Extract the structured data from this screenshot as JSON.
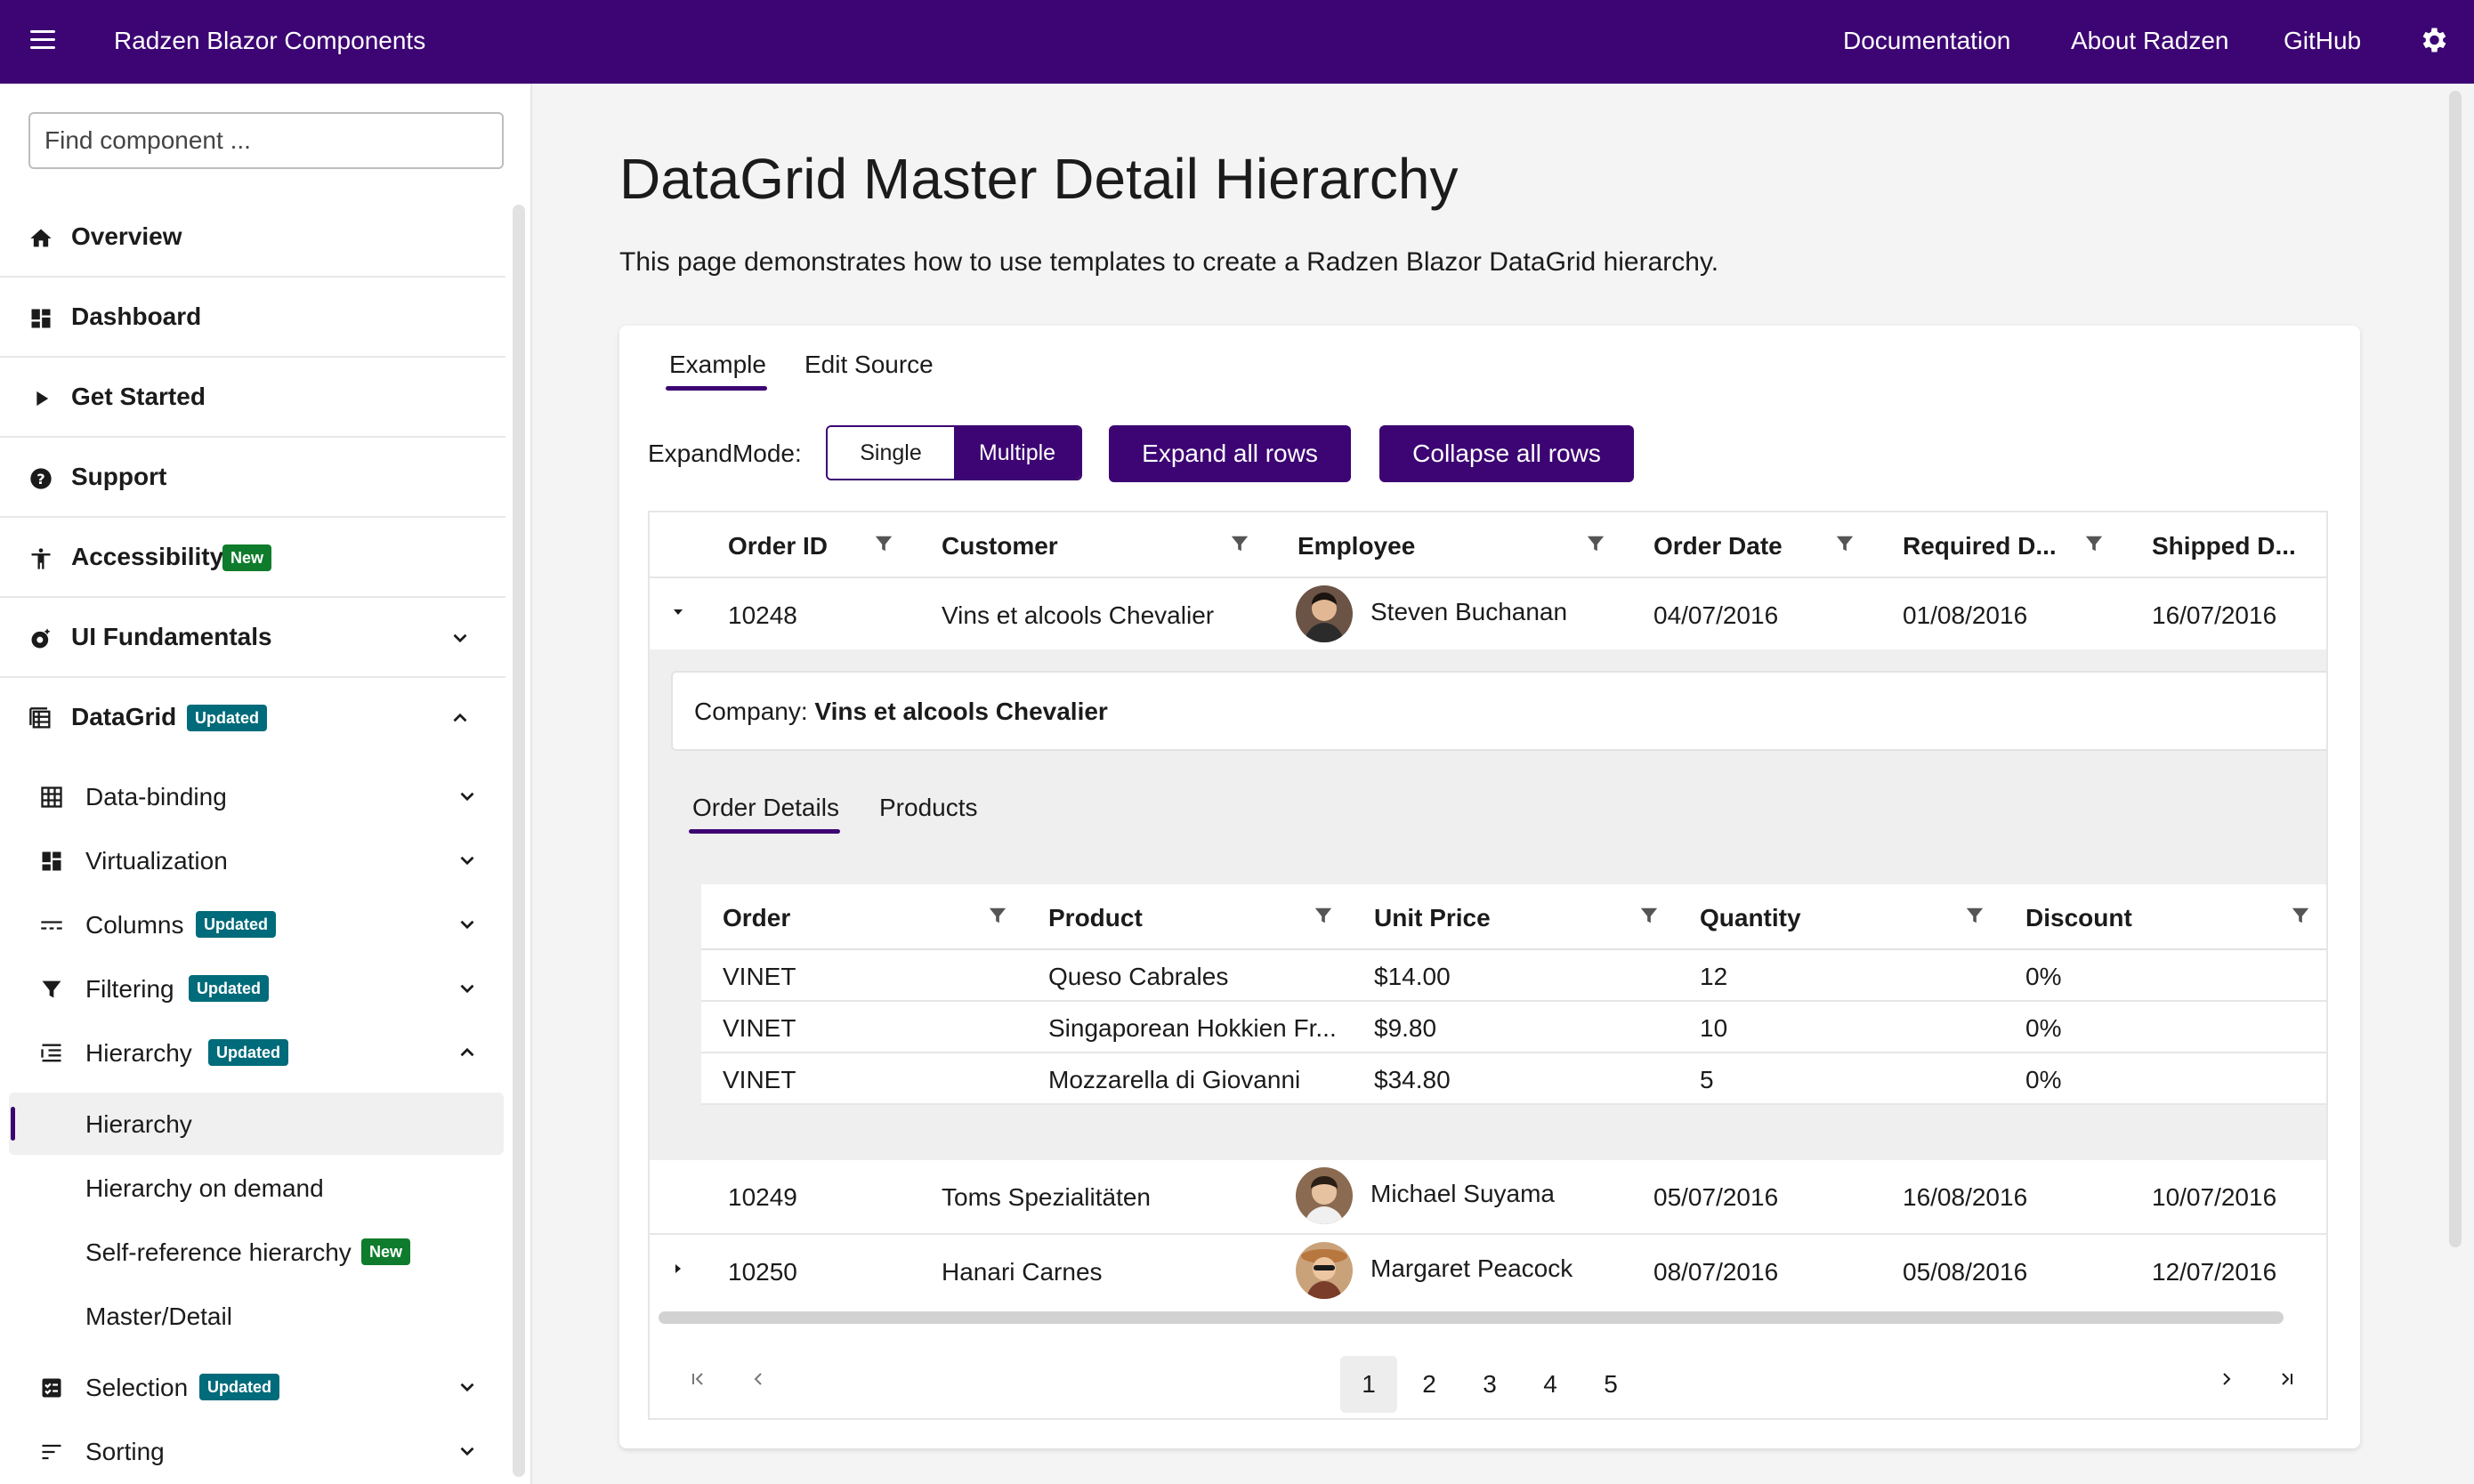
{
  "topbar": {
    "app_title": "Radzen Blazor Components",
    "links": [
      "Documentation",
      "About Radzen",
      "GitHub"
    ],
    "menu_icon": "hamburger-icon",
    "settings_icon": "gear-icon"
  },
  "sidebar": {
    "search_placeholder": "Find component ...",
    "items": [
      {
        "label": "Overview",
        "icon": "home-icon"
      },
      {
        "label": "Dashboard",
        "icon": "dashboard-icon"
      },
      {
        "label": "Get Started",
        "icon": "play-icon"
      },
      {
        "label": "Support",
        "icon": "help-icon"
      },
      {
        "label": "Accessibility",
        "icon": "accessibility-icon",
        "badge": "New"
      },
      {
        "label": "UI Fundamentals",
        "icon": "palette-icon"
      },
      {
        "label": "DataGrid",
        "icon": "grid-icon",
        "badge": "Updated"
      }
    ],
    "datagrid_children": [
      {
        "label": "Data-binding",
        "icon": "table-icon"
      },
      {
        "label": "Virtualization",
        "icon": "dashboard-icon"
      },
      {
        "label": "Columns",
        "icon": "columns-icon",
        "badge": "Updated"
      },
      {
        "label": "Filtering",
        "icon": "filter-icon",
        "badge": "Updated"
      },
      {
        "label": "Hierarchy",
        "icon": "hierarchy-icon",
        "badge": "Updated"
      }
    ],
    "hierarchy_children": [
      {
        "label": "Hierarchy",
        "active": true
      },
      {
        "label": "Hierarchy on demand"
      },
      {
        "label": "Self-reference hierarchy",
        "badge": "New"
      },
      {
        "label": "Master/Detail"
      }
    ],
    "more_children": [
      {
        "label": "Selection",
        "icon": "checklist-icon",
        "badge": "Updated"
      },
      {
        "label": "Sorting",
        "icon": "sort-icon"
      }
    ]
  },
  "main": {
    "title": "DataGrid Master Detail Hierarchy",
    "description": "This page demonstrates how to use templates to create a Radzen Blazor DataGrid hierarchy.",
    "tabs": [
      "Example",
      "Edit Source"
    ],
    "expand_mode_label": "ExpandMode:",
    "expand_mode_options": [
      "Single",
      "Multiple"
    ],
    "expand_mode_selected": "Multiple",
    "expand_all_label": "Expand all rows",
    "collapse_all_label": "Collapse all rows",
    "grid": {
      "columns": [
        "Order ID",
        "Customer",
        "Employee",
        "Order Date",
        "Required D...",
        "Shipped D..."
      ],
      "rows": [
        {
          "order_id": "10248",
          "customer": "Vins et alcools Chevalier",
          "employee": "Steven Buchanan",
          "order_date": "04/07/2016",
          "required": "01/08/2016",
          "shipped": "16/07/2016",
          "expanded": true
        },
        {
          "order_id": "10249",
          "customer": "Toms Spezialitäten",
          "employee": "Michael Suyama",
          "order_date": "05/07/2016",
          "required": "16/08/2016",
          "shipped": "10/07/2016"
        },
        {
          "order_id": "10250",
          "customer": "Hanari Carnes",
          "employee": "Margaret Peacock",
          "order_date": "08/07/2016",
          "required": "05/08/2016",
          "shipped": "12/07/2016"
        }
      ],
      "detail": {
        "company_label": "Company:",
        "company_value": "Vins et alcools Chevalier",
        "tabs": [
          "Order Details",
          "Products"
        ],
        "columns": [
          "Order",
          "Product",
          "Unit Price",
          "Quantity",
          "Discount"
        ],
        "rows": [
          [
            "VINET",
            "Queso Cabrales",
            "$14.00",
            "12",
            "0%"
          ],
          [
            "VINET",
            "Singaporean Hokkien Fr...",
            "$9.80",
            "10",
            "0%"
          ],
          [
            "VINET",
            "Mozzarella di Giovanni",
            "$34.80",
            "5",
            "0%"
          ]
        ]
      },
      "pager": {
        "pages": [
          "1",
          "2",
          "3",
          "4",
          "5"
        ],
        "current": "1"
      }
    }
  },
  "colors": {
    "brand": "#3c0573",
    "badge_new": "#0e7c2c",
    "badge_updated": "#006b7a"
  }
}
